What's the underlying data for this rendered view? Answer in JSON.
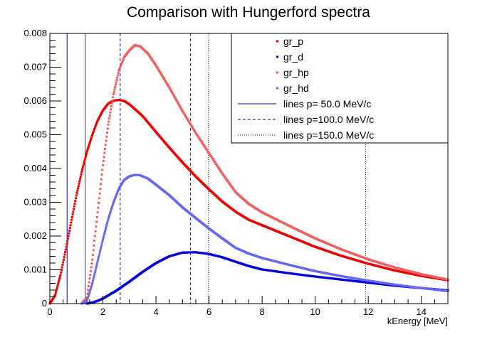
{
  "chart_data": {
    "type": "scatter",
    "title": "Comparison with Hungerford spectra",
    "xlabel": "kEnergy [MeV]",
    "ylabel": "",
    "xlim": [
      0,
      15
    ],
    "ylim": [
      0,
      0.008
    ],
    "x_ticks": [
      "0",
      "2",
      "4",
      "6",
      "8",
      "10",
      "12",
      "14"
    ],
    "y_ticks": [
      "0",
      "0.001",
      "0.002",
      "0.003",
      "0.004",
      "0.005",
      "0.006",
      "0.007",
      "0.008"
    ],
    "grid": false,
    "legend_position": "top-right",
    "series": [
      {
        "name": "gr_p",
        "color": "#ee0000",
        "points": [
          [
            0,
            0
          ],
          [
            0.2,
            0.00025
          ],
          [
            0.4,
            0.00085
          ],
          [
            0.6,
            0.0016
          ],
          [
            0.8,
            0.0024
          ],
          [
            1.0,
            0.0032
          ],
          [
            1.2,
            0.0039
          ],
          [
            1.4,
            0.0045
          ],
          [
            1.6,
            0.005
          ],
          [
            1.8,
            0.00542
          ],
          [
            2.0,
            0.00572
          ],
          [
            2.2,
            0.00592
          ],
          [
            2.4,
            0.00601
          ],
          [
            2.6,
            0.00603
          ],
          [
            2.8,
            0.006
          ],
          [
            3.0,
            0.0059
          ],
          [
            3.5,
            0.00555
          ],
          [
            4.0,
            0.00508
          ],
          [
            4.5,
            0.00462
          ],
          [
            5.0,
            0.00418
          ],
          [
            5.5,
            0.00376
          ],
          [
            6.0,
            0.00338
          ],
          [
            6.5,
            0.00302
          ],
          [
            7.0,
            0.00272
          ],
          [
            7.5,
            0.00248
          ],
          [
            8.0,
            0.00232
          ],
          [
            9.0,
            0.002
          ],
          [
            10.0,
            0.00168
          ],
          [
            11.0,
            0.00141
          ],
          [
            12.0,
            0.00118
          ],
          [
            13.0,
            0.00098
          ],
          [
            14.0,
            0.00082
          ],
          [
            15.0,
            0.00069
          ]
        ]
      },
      {
        "name": "gr_d",
        "color": "#0000dd",
        "points": [
          [
            1.4,
            0
          ],
          [
            1.6,
            3e-05
          ],
          [
            1.8,
            8e-05
          ],
          [
            2.0,
            0.00015
          ],
          [
            2.5,
            0.00038
          ],
          [
            3.0,
            0.00065
          ],
          [
            3.5,
            0.00094
          ],
          [
            4.0,
            0.0012
          ],
          [
            4.5,
            0.0014
          ],
          [
            5.0,
            0.00151
          ],
          [
            5.5,
            0.00152
          ],
          [
            6.0,
            0.00147
          ],
          [
            6.5,
            0.00137
          ],
          [
            7.0,
            0.00124
          ],
          [
            7.5,
            0.00111
          ],
          [
            8.0,
            0.00101
          ],
          [
            9.0,
            0.0009
          ],
          [
            10.0,
            0.0008
          ],
          [
            11.0,
            0.00071
          ],
          [
            12.0,
            0.00062
          ],
          [
            13.0,
            0.00053
          ],
          [
            14.0,
            0.00046
          ],
          [
            15.0,
            0.00039
          ]
        ]
      },
      {
        "name": "gr_hp",
        "color": "#f06060",
        "points": [
          [
            1.2,
            0
          ],
          [
            1.4,
            0.00018
          ],
          [
            1.6,
            0.0013
          ],
          [
            1.8,
            0.0027
          ],
          [
            2.0,
            0.0041
          ],
          [
            2.2,
            0.0053
          ],
          [
            2.4,
            0.0062
          ],
          [
            2.6,
            0.0069
          ],
          [
            2.8,
            0.0073
          ],
          [
            3.0,
            0.0075
          ],
          [
            3.2,
            0.00765
          ],
          [
            3.4,
            0.00762
          ],
          [
            3.7,
            0.0074
          ],
          [
            4.0,
            0.00705
          ],
          [
            4.5,
            0.0064
          ],
          [
            5.0,
            0.0057
          ],
          [
            5.5,
            0.00505
          ],
          [
            6.0,
            0.00445
          ],
          [
            6.5,
            0.00385
          ],
          [
            7.0,
            0.0033
          ],
          [
            7.5,
            0.00295
          ],
          [
            8.0,
            0.0027
          ],
          [
            9.0,
            0.00231
          ],
          [
            10.0,
            0.00193
          ],
          [
            11.0,
            0.0016
          ],
          [
            12.0,
            0.00131
          ],
          [
            13.0,
            0.00107
          ],
          [
            14.0,
            0.00087
          ],
          [
            15.0,
            0.00071
          ]
        ]
      },
      {
        "name": "gr_hd",
        "color": "#6666ee",
        "points": [
          [
            1.2,
            0
          ],
          [
            1.4,
            8e-05
          ],
          [
            1.6,
            0.0006
          ],
          [
            1.8,
            0.00125
          ],
          [
            2.0,
            0.0019
          ],
          [
            2.2,
            0.0025
          ],
          [
            2.4,
            0.003
          ],
          [
            2.6,
            0.0034
          ],
          [
            2.8,
            0.00366
          ],
          [
            3.0,
            0.00377
          ],
          [
            3.2,
            0.00381
          ],
          [
            3.4,
            0.0038
          ],
          [
            3.7,
            0.0037
          ],
          [
            4.0,
            0.00352
          ],
          [
            4.5,
            0.00321
          ],
          [
            5.0,
            0.00285
          ],
          [
            5.5,
            0.00253
          ],
          [
            6.0,
            0.00222
          ],
          [
            6.5,
            0.00193
          ],
          [
            7.0,
            0.00165
          ],
          [
            7.5,
            0.00148
          ],
          [
            8.0,
            0.00135
          ],
          [
            9.0,
            0.00115
          ],
          [
            10.0,
            0.00096
          ],
          [
            11.0,
            0.00081
          ],
          [
            12.0,
            0.00068
          ],
          [
            13.0,
            0.00056
          ],
          [
            14.0,
            0.00046
          ],
          [
            15.0,
            0.00037
          ]
        ]
      }
    ],
    "vertical_lines": [
      {
        "x": 0.65,
        "color": "#0000cc",
        "style": "solid"
      },
      {
        "x": 1.33,
        "color": "#cc0000",
        "style": "solid"
      },
      {
        "x": 2.65,
        "color": "#000088",
        "style": "dashed"
      },
      {
        "x": 5.3,
        "color": "#cc0000",
        "style": "dashed"
      },
      {
        "x": 5.98,
        "color": "#000088",
        "style": "dotted"
      },
      {
        "x": 11.9,
        "color": "#cc0000",
        "style": "dotted"
      }
    ],
    "legend": [
      {
        "label": "gr_p",
        "kind": "marker",
        "color": "#ee0000"
      },
      {
        "label": "gr_d",
        "kind": "marker",
        "color": "#0000dd"
      },
      {
        "label": "gr_hp",
        "kind": "marker",
        "color": "#f06060"
      },
      {
        "label": "gr_hd",
        "kind": "marker",
        "color": "#6666ee"
      },
      {
        "label": "lines p= 50.0 MeV/c",
        "kind": "line",
        "style": "solid",
        "color": "#000088"
      },
      {
        "label": "lines p=100.0 MeV/c",
        "kind": "line",
        "style": "dashed",
        "color": "#000088"
      },
      {
        "label": "lines p=150.0 MeV/c",
        "kind": "line",
        "style": "dotted",
        "color": "#000088"
      }
    ]
  }
}
